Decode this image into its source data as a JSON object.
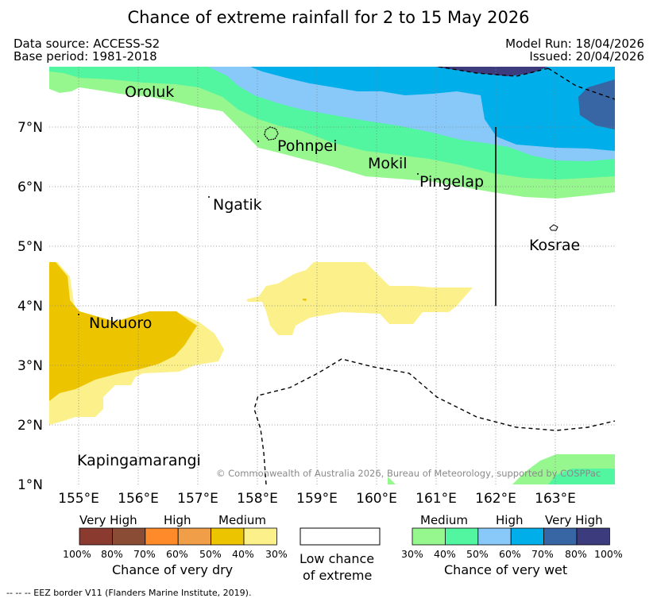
{
  "title": "Chance of extreme rainfall for 2 to 15 May 2026",
  "header": {
    "data_source": "Data source: ACCESS-S2",
    "base_period": "Base period: 1981-2018",
    "model_run": "Model Run: 18/04/2026",
    "issued": "Issued: 20/04/2026"
  },
  "map": {
    "lat_labels": [
      "7°N",
      "6°N",
      "5°N",
      "4°N",
      "3°N",
      "2°N",
      "1°N"
    ],
    "lon_labels": [
      "155°E",
      "156°E",
      "157°E",
      "158°E",
      "159°E",
      "160°E",
      "161°E",
      "162°E",
      "163°E"
    ],
    "places": {
      "oroluk": "Oroluk",
      "pohnpei": "Pohnpei",
      "mokil": "Mokil",
      "pingelap": "Pingelap",
      "ngatik": "Ngatik",
      "kosrae": "Kosrae",
      "nukuoro": "Nukuoro",
      "kapingamarangi": "Kapingamarangi"
    },
    "copyright": "© Commonwealth of Australia 2026, Bureau of Meteorology, supported by COSPPac"
  },
  "legend": {
    "dry": {
      "categories": [
        "Very High",
        "High",
        "Medium"
      ],
      "ticks": [
        "100%",
        "80%",
        "70%",
        "60%",
        "50%",
        "40%",
        "30%"
      ],
      "colors": [
        "#8b3a2f",
        "#8b4c36",
        "#ff8a2a",
        "#f09f48",
        "#ecc400",
        "#fbf08a"
      ],
      "caption": "Chance of very dry"
    },
    "low": {
      "caption_line1": "Low chance",
      "caption_line2": "of extreme"
    },
    "wet": {
      "categories": [
        "Medium",
        "High",
        "Very High"
      ],
      "ticks": [
        "30%",
        "40%",
        "50%",
        "60%",
        "70%",
        "80%",
        "100%"
      ],
      "colors": [
        "#96f78f",
        "#52f5a0",
        "#88c9fa",
        "#00aeea",
        "#3865a3",
        "#3b3b7e"
      ],
      "caption": "Chance of very wet"
    }
  },
  "footnote": "--  --  -- EEZ border V11 (Flanders Marine Institute, 2019)."
}
